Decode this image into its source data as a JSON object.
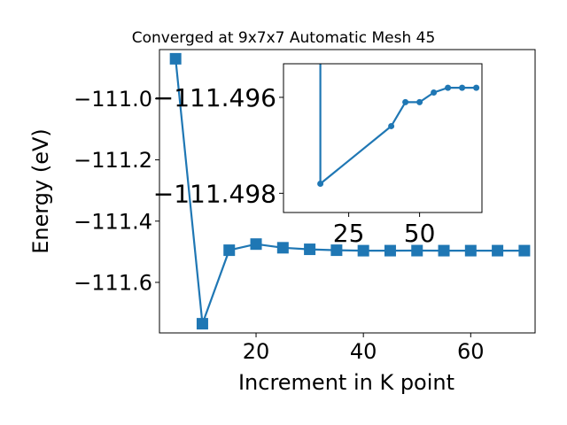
{
  "colors": {
    "series": "#1f77b4",
    "axes": "#000000",
    "background": "#ffffff"
  },
  "chart_data": [
    {
      "type": "line",
      "title": "Converged at 9x7x7 Automatic Mesh 45",
      "xlabel": "Increment in K point",
      "ylabel": "Energy (eV)",
      "marker": "square",
      "xlim": [
        2,
        72
      ],
      "ylim": [
        -111.765,
        -110.84
      ],
      "xticks": [
        20,
        40,
        60
      ],
      "xtick_labels": [
        "20",
        "40",
        "60"
      ],
      "yticks": [
        -111.0,
        -111.2,
        -111.4,
        -111.6
      ],
      "ytick_labels": [
        "−111.0",
        "−111.2",
        "−111.4",
        "−111.6"
      ],
      "series": [
        {
          "x": [
            5,
            10,
            15,
            20,
            25,
            30,
            35,
            40,
            45,
            50,
            55,
            60,
            65,
            70
          ],
          "y": [
            -110.87,
            -111.735,
            -111.495,
            -111.475,
            -111.487,
            -111.492,
            -111.495,
            -111.4965,
            -111.4964,
            -111.4963,
            -111.4964,
            -111.4964,
            -111.4964,
            -111.4964
          ]
        }
      ]
    },
    {
      "type": "line",
      "inset": true,
      "marker": "circle",
      "xlim": [
        2,
        72
      ],
      "ylim": [
        -111.4984,
        -111.4953
      ],
      "xticks": [
        25,
        50
      ],
      "xtick_labels": [
        "25",
        "50"
      ],
      "yticks": [
        -111.498,
        -111.496
      ],
      "ytick_labels": [
        "−111.498",
        "−111.496"
      ],
      "series": [
        {
          "x": [
            15,
            15,
            40,
            45,
            50,
            55,
            60,
            65,
            70
          ],
          "y": [
            -111.4953,
            -111.4978,
            -111.4966,
            -111.4961,
            -111.4961,
            -111.4959,
            -111.4958,
            -111.4958,
            -111.4958
          ]
        }
      ]
    }
  ]
}
